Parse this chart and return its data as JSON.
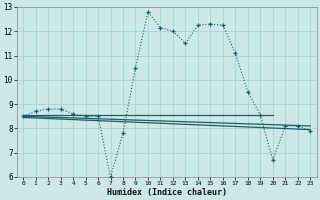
{
  "xlabel": "Humidex (Indice chaleur)",
  "bg_color": "#cce8e8",
  "grid_color": "#aad4d4",
  "line_color": "#1a6060",
  "xlim": [
    -0.5,
    23.5
  ],
  "ylim": [
    6,
    13
  ],
  "xticks": [
    0,
    1,
    2,
    3,
    4,
    5,
    6,
    7,
    8,
    9,
    10,
    11,
    12,
    13,
    14,
    15,
    16,
    17,
    18,
    19,
    20,
    21,
    22,
    23
  ],
  "yticks": [
    6,
    7,
    8,
    9,
    10,
    11,
    12,
    13
  ],
  "series_main": {
    "x": [
      0,
      1,
      2,
      3,
      4,
      5,
      6,
      7,
      8,
      9,
      10,
      11,
      12,
      13,
      14,
      15,
      16,
      17,
      18,
      19,
      20,
      21,
      22,
      23
    ],
    "y": [
      8.5,
      8.7,
      8.8,
      8.8,
      8.6,
      8.5,
      8.5,
      6.0,
      7.8,
      10.5,
      12.8,
      12.15,
      12.0,
      11.5,
      12.25,
      12.3,
      12.25,
      11.1,
      9.5,
      8.55,
      6.7,
      8.1,
      8.1,
      7.9
    ]
  },
  "series_lines": [
    {
      "x": [
        0,
        20
      ],
      "y": [
        8.55,
        8.55
      ]
    },
    {
      "x": [
        0,
        23
      ],
      "y": [
        8.5,
        8.1
      ]
    },
    {
      "x": [
        0,
        23
      ],
      "y": [
        8.45,
        7.95
      ]
    }
  ]
}
